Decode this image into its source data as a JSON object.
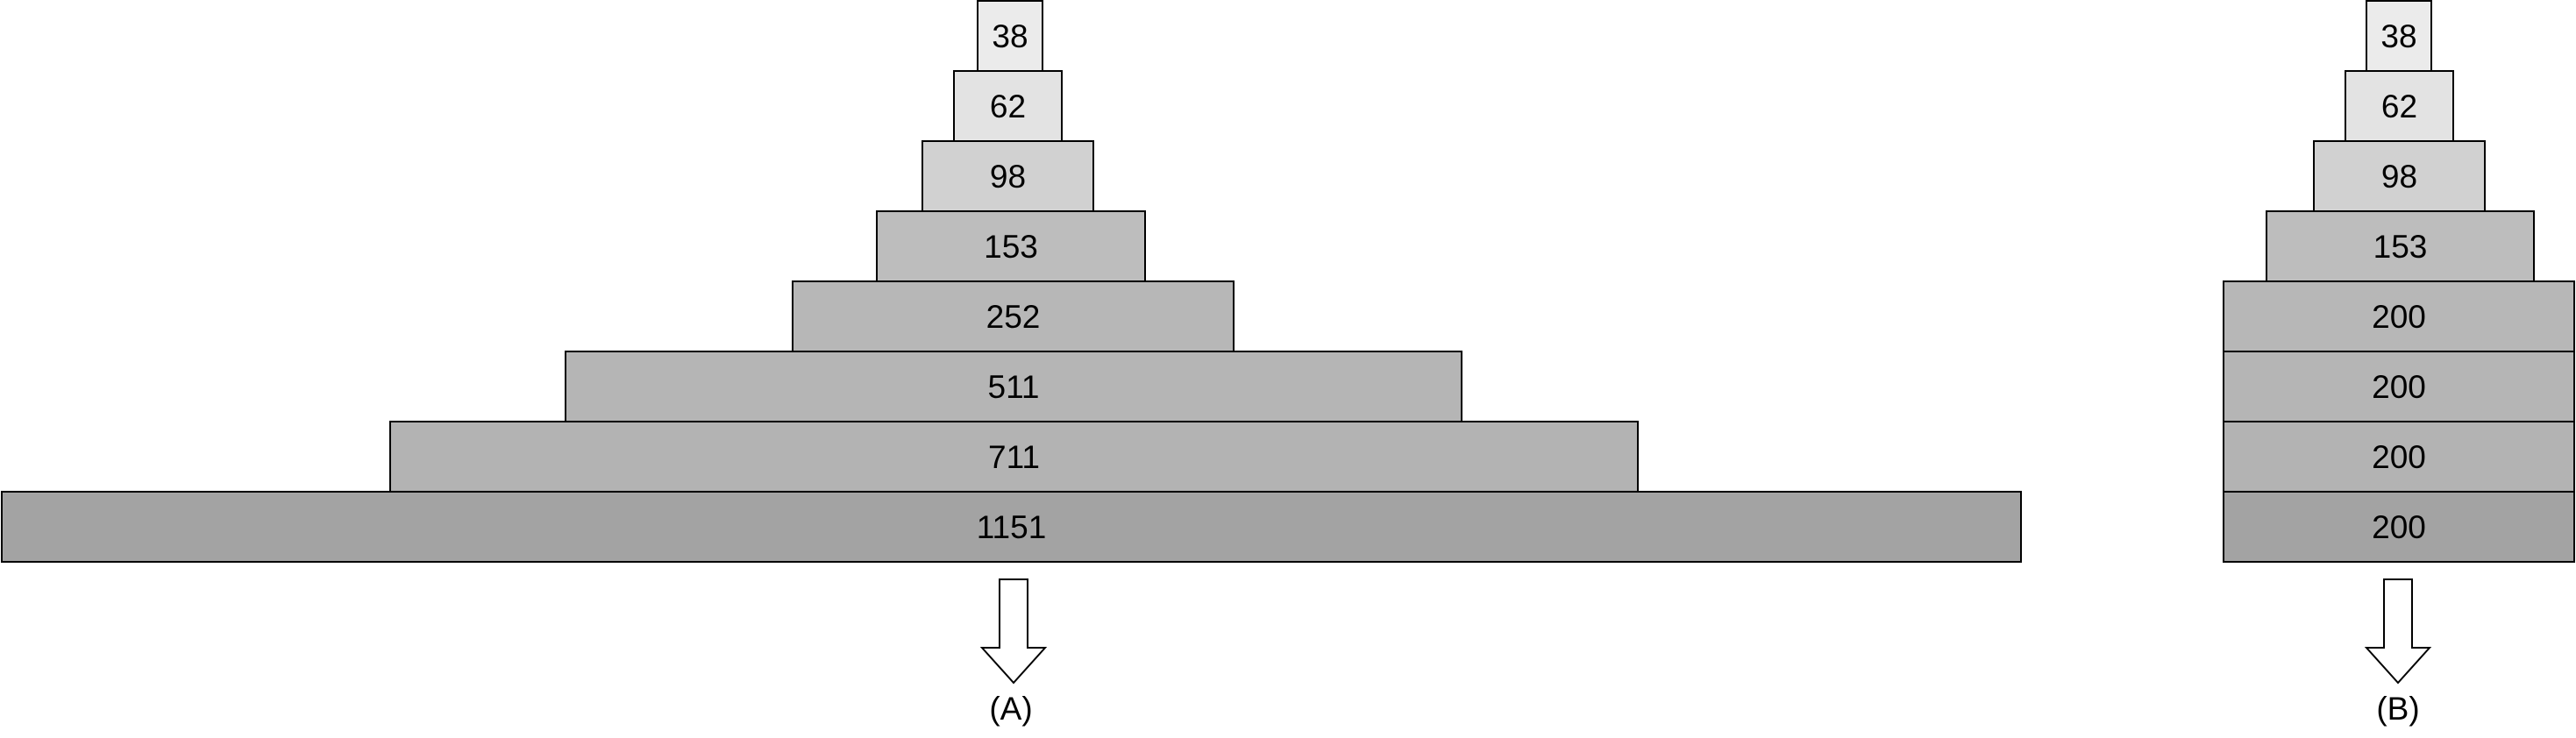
{
  "diagrams": [
    {
      "label": "(A)",
      "blocks": [
        {
          "value": "38",
          "color": "#ebebeb"
        },
        {
          "value": "62",
          "color": "#e3e3e3"
        },
        {
          "value": "98",
          "color": "#d1d1d1"
        },
        {
          "value": "153",
          "color": "#bdbdbd"
        },
        {
          "value": "252",
          "color": "#b7b7b7"
        },
        {
          "value": "511",
          "color": "#b5b5b5"
        },
        {
          "value": "711",
          "color": "#b3b3b3"
        },
        {
          "value": "1151",
          "color": "#a3a3a3"
        }
      ]
    },
    {
      "label": "(B)",
      "blocks": [
        {
          "value": "38",
          "color": "#ebebeb"
        },
        {
          "value": "62",
          "color": "#e3e3e3"
        },
        {
          "value": "98",
          "color": "#d1d1d1"
        },
        {
          "value": "153",
          "color": "#bdbdbd"
        },
        {
          "value": "200",
          "color": "#b7b7b7"
        },
        {
          "value": "200",
          "color": "#b5b5b5"
        },
        {
          "value": "200",
          "color": "#b3b3b3"
        },
        {
          "value": "200",
          "color": "#a3a3a3"
        }
      ]
    }
  ]
}
